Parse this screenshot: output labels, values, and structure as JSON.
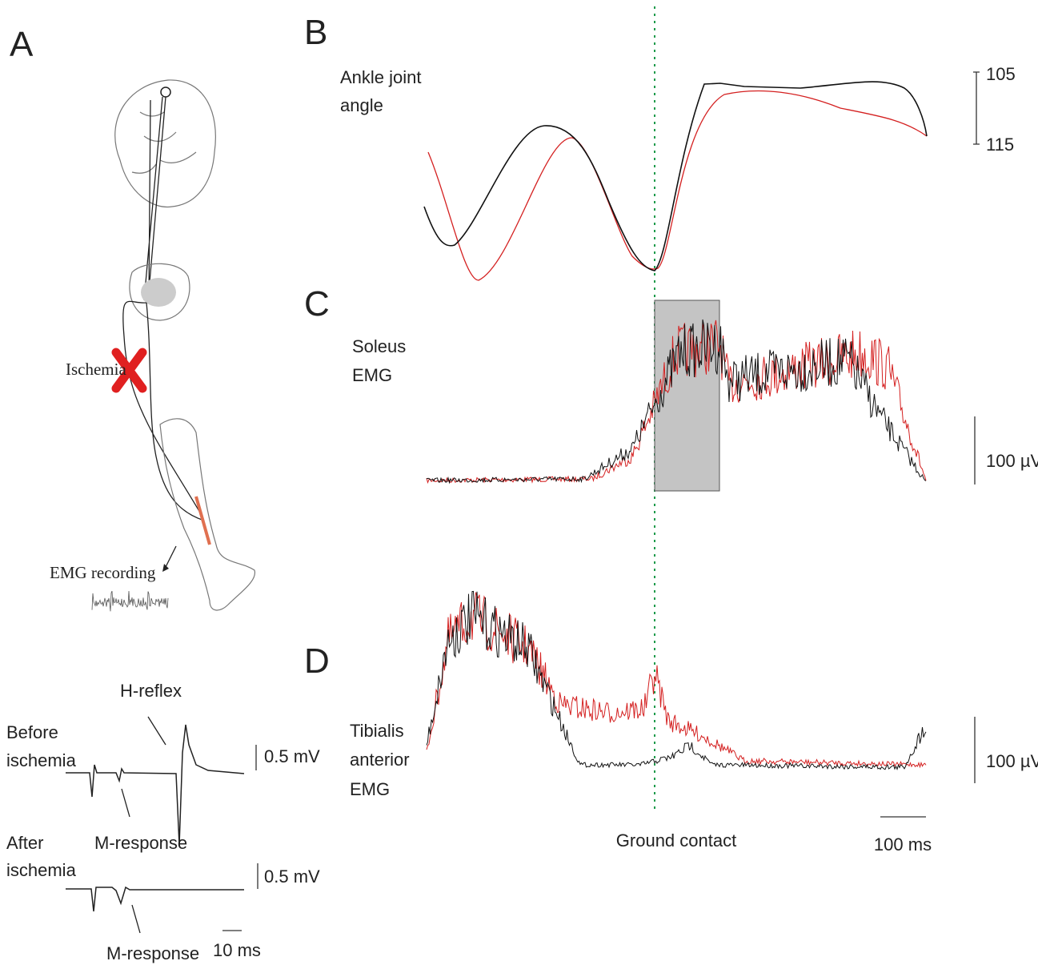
{
  "panel_a": {
    "label": "A",
    "ischemia": "Ischemia",
    "emg_recording": "EMG recording",
    "h_reflex": "H-reflex",
    "before_ischemia": [
      "Before",
      "ischemia"
    ],
    "after_ischemia": [
      "After",
      "ischemia"
    ],
    "m_response_before": "M-response",
    "m_response_after": "M-response",
    "scale_before": "0.5 mV",
    "scale_after": "0.5 mV",
    "time_scale": "10 ms"
  },
  "panel_b": {
    "label": "B",
    "title": [
      "Ankle joint",
      "angle"
    ],
    "scale_top": "105",
    "scale_bottom": "115"
  },
  "panel_c": {
    "label": "C",
    "title": [
      "Soleus",
      "EMG"
    ],
    "scale": "100 µV"
  },
  "panel_d": {
    "label": "D",
    "title": [
      "Tibialis",
      "anterior",
      "EMG"
    ],
    "scale": "100 µV"
  },
  "ground_contact": "Ground contact",
  "time_scale": "100 ms"
}
